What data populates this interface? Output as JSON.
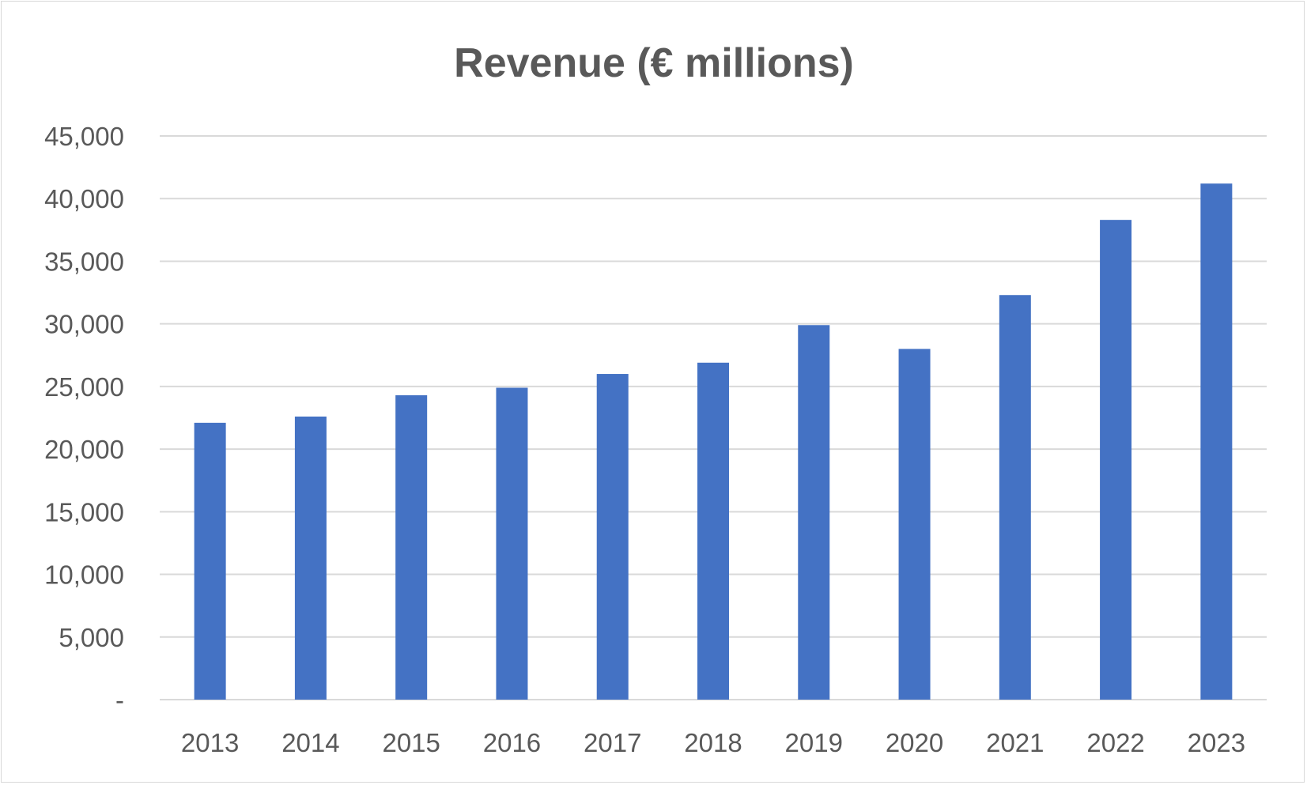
{
  "chart_data": {
    "type": "bar",
    "title": "Revenue (€ millions)",
    "xlabel": "",
    "ylabel": "",
    "categories": [
      "2013",
      "2014",
      "2015",
      "2016",
      "2017",
      "2018",
      "2019",
      "2020",
      "2021",
      "2022",
      "2023"
    ],
    "series": [
      {
        "values": [
          22100,
          22600,
          24300,
          24900,
          26000,
          26900,
          29900,
          28000,
          32300,
          38300,
          41200
        ]
      }
    ],
    "ylim": [
      0,
      45000
    ],
    "yticks": [
      0,
      5000,
      10000,
      15000,
      20000,
      25000,
      30000,
      35000,
      40000,
      45000
    ],
    "ytick_labels": [
      "-",
      "5,000",
      "10,000",
      "15,000",
      "20,000",
      "25,000",
      "30,000",
      "35,000",
      "40,000",
      "45,000"
    ],
    "grid": true,
    "legend": "none",
    "colors": {
      "bar": "#4472c4",
      "grid": "#d9d9d9",
      "text": "#595959"
    }
  }
}
